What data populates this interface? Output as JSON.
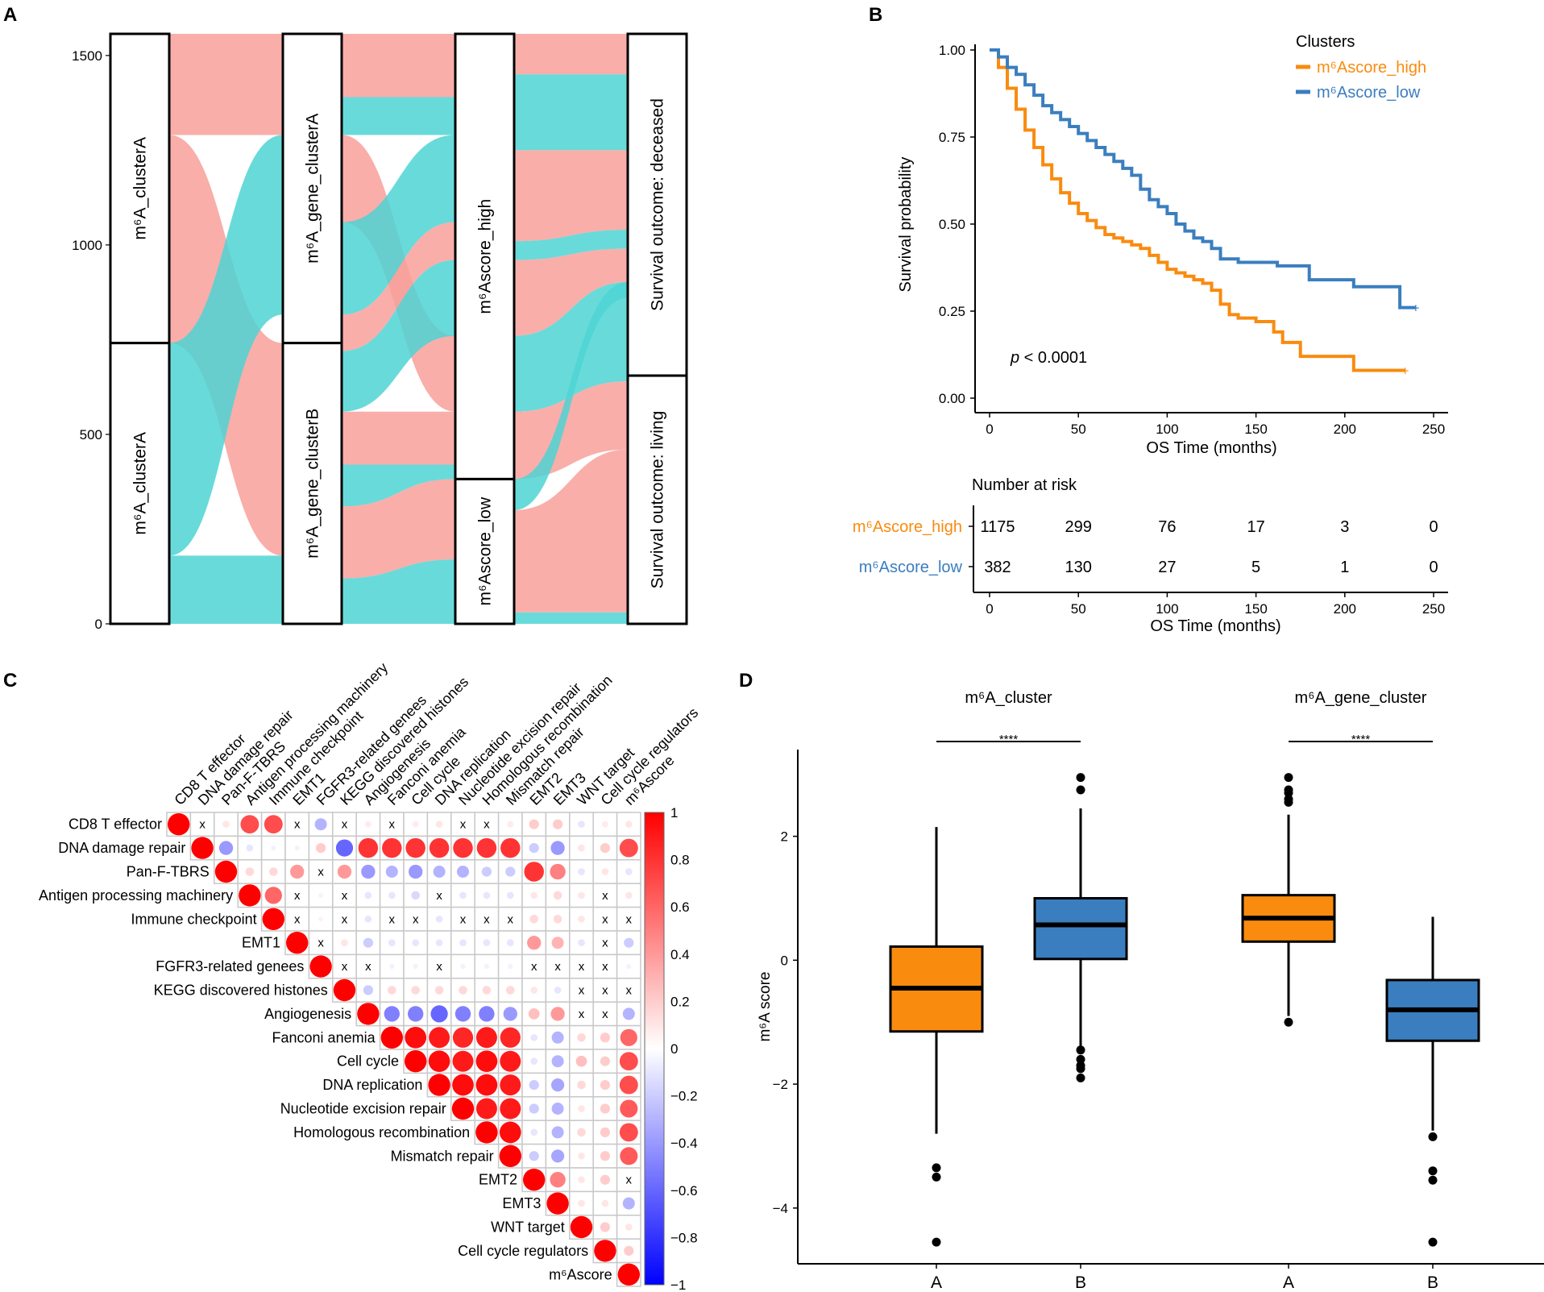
{
  "panels": {
    "A": "A",
    "B": "B",
    "C": "C",
    "D": "D"
  },
  "chart_data": [
    {
      "panel": "A",
      "type": "alluvial",
      "y_ticks": [
        "0",
        "500",
        "1000",
        "1500"
      ],
      "ylim": [
        0,
        1557
      ],
      "colors": {
        "pink": "#f8a09b",
        "teal": "#4fd3d3"
      },
      "axes": [
        {
          "strata": [
            {
              "label": "m⁶A_clusterA",
              "size": 816
            },
            {
              "label": "m⁶A_clusterA",
              "size": 741
            }
          ]
        },
        {
          "strata": [
            {
              "label": "m⁶A_gene_clusterA",
              "size": 816
            },
            {
              "label": "m⁶A_gene_clusterB",
              "size": 741
            }
          ]
        },
        {
          "strata": [
            {
              "label": "m⁶Ascore_high",
              "size": 1175
            },
            {
              "label": "m⁶Ascore_low",
              "size": 382
            }
          ]
        },
        {
          "strata": [
            {
              "label": "Survival outcome: deceased",
              "size": 902
            },
            {
              "label": "Survival outcome: living",
              "size": 655
            }
          ]
        }
      ]
    },
    {
      "panel": "B",
      "type": "line",
      "subtype": "kaplan-meier",
      "ylabel": "Survival probability",
      "xlabel": "OS Time (months)",
      "xlim": [
        0,
        250
      ],
      "ylim": [
        0,
        1
      ],
      "x_ticks": [
        "0",
        "50",
        "100",
        "150",
        "200",
        "250"
      ],
      "y_ticks": [
        "0.00",
        "0.25",
        "0.50",
        "0.75",
        "1.00"
      ],
      "legend_title": "Clusters",
      "pvalue_prefix": "p",
      "pvalue_text": " < 0.0001",
      "series": [
        {
          "name": "m⁶Ascore_high",
          "color": "#f98b0f",
          "points": [
            [
              0,
              1.0
            ],
            [
              5,
              0.95
            ],
            [
              10,
              0.89
            ],
            [
              15,
              0.83
            ],
            [
              20,
              0.77
            ],
            [
              25,
              0.72
            ],
            [
              30,
              0.67
            ],
            [
              35,
              0.63
            ],
            [
              40,
              0.59
            ],
            [
              45,
              0.56
            ],
            [
              50,
              0.53
            ],
            [
              55,
              0.51
            ],
            [
              60,
              0.49
            ],
            [
              65,
              0.47
            ],
            [
              70,
              0.46
            ],
            [
              75,
              0.45
            ],
            [
              80,
              0.44
            ],
            [
              85,
              0.43
            ],
            [
              90,
              0.41
            ],
            [
              95,
              0.39
            ],
            [
              100,
              0.37
            ],
            [
              105,
              0.36
            ],
            [
              110,
              0.35
            ],
            [
              115,
              0.34
            ],
            [
              120,
              0.33
            ],
            [
              125,
              0.31
            ],
            [
              130,
              0.27
            ],
            [
              135,
              0.24
            ],
            [
              140,
              0.23
            ],
            [
              150,
              0.22
            ],
            [
              160,
              0.19
            ],
            [
              165,
              0.16
            ],
            [
              175,
              0.12
            ],
            [
              205,
              0.08
            ],
            [
              234,
              0.08
            ]
          ]
        },
        {
          "name": "m⁶Ascore_low",
          "color": "#3a7ebf",
          "points": [
            [
              0,
              1.0
            ],
            [
              5,
              0.98
            ],
            [
              10,
              0.95
            ],
            [
              15,
              0.93
            ],
            [
              20,
              0.9
            ],
            [
              25,
              0.87
            ],
            [
              30,
              0.84
            ],
            [
              35,
              0.82
            ],
            [
              40,
              0.8
            ],
            [
              45,
              0.78
            ],
            [
              50,
              0.76
            ],
            [
              55,
              0.74
            ],
            [
              60,
              0.72
            ],
            [
              65,
              0.7
            ],
            [
              70,
              0.68
            ],
            [
              75,
              0.66
            ],
            [
              80,
              0.64
            ],
            [
              85,
              0.6
            ],
            [
              90,
              0.57
            ],
            [
              95,
              0.55
            ],
            [
              100,
              0.53
            ],
            [
              105,
              0.5
            ],
            [
              110,
              0.48
            ],
            [
              115,
              0.46
            ],
            [
              120,
              0.45
            ],
            [
              125,
              0.43
            ],
            [
              130,
              0.4
            ],
            [
              140,
              0.39
            ],
            [
              150,
              0.39
            ],
            [
              162,
              0.38
            ],
            [
              175,
              0.38
            ],
            [
              180,
              0.34
            ],
            [
              190,
              0.34
            ],
            [
              198,
              0.34
            ],
            [
              205,
              0.32
            ],
            [
              230,
              0.32
            ],
            [
              231,
              0.26
            ],
            [
              240,
              0.26
            ]
          ]
        }
      ],
      "risk_table": {
        "title": "Number at risk",
        "xlabel": "OS Time (months)",
        "x_ticks": [
          "0",
          "50",
          "100",
          "150",
          "200",
          "250"
        ],
        "rows": [
          {
            "name": "m⁶Ascore_high",
            "color": "#f98b0f",
            "values": [
              "1175",
              "299",
              "76",
              "17",
              "3",
              "0"
            ]
          },
          {
            "name": "m⁶Ascore_low",
            "color": "#3a7ebf",
            "values": [
              "382",
              "130",
              "27",
              "5",
              "1",
              "0"
            ]
          }
        ]
      }
    },
    {
      "panel": "C",
      "type": "heatmap",
      "subtype": "correlation-upper-triangle",
      "variables": [
        "CD8 T effector",
        "DNA damage repair",
        "Pan-F-TBRS",
        "Antigen processing machinery",
        "Immune checkpoint",
        "EMT1",
        "FGFR3-related genees",
        "KEGG discovered histones",
        "Angiogenesis",
        "Fanconi anemia",
        "Cell cycle",
        "DNA replication",
        "Nucleotide excision repair",
        "Homologous recombination",
        "Mismatch repair",
        "EMT2",
        "EMT3",
        "WNT target",
        "Cell cycle regulators",
        "m⁶Ascore"
      ],
      "colorbar_ticks": [
        "1",
        "0.8",
        "0.6",
        "0.4",
        "0.2",
        "0",
        "−0.2",
        "−0.4",
        "−0.6",
        "−0.8",
        "−1"
      ],
      "insignificant_marker": "x",
      "matrix": [
        [
          1,
          "x",
          0.1,
          0.7,
          0.7,
          "x",
          -0.3,
          "x",
          0.08,
          "x",
          0.08,
          0.1,
          "x",
          "x",
          0.08,
          0.2,
          0.2,
          -0.1,
          0.08,
          0.1
        ],
        [
          null,
          1,
          -0.4,
          -0.1,
          -0.05,
          -0.05,
          0.2,
          -0.6,
          0.8,
          0.8,
          0.8,
          0.8,
          0.8,
          0.8,
          0.8,
          -0.2,
          -0.4,
          0.1,
          0.2,
          0.7
        ],
        [
          null,
          null,
          1,
          0.15,
          0.15,
          0.4,
          "x",
          0.4,
          -0.4,
          -0.3,
          -0.4,
          -0.3,
          -0.3,
          -0.2,
          -0.2,
          0.8,
          0.5,
          -0.1,
          0.1,
          -0.1
        ],
        [
          null,
          null,
          null,
          1,
          0.6,
          "x",
          0.05,
          "x",
          -0.1,
          -0.1,
          -0.15,
          "x",
          -0.1,
          -0.1,
          -0.1,
          0.1,
          0.15,
          0.1,
          "x",
          0.1
        ],
        [
          null,
          null,
          null,
          null,
          1,
          "x",
          0.05,
          "x",
          -0.1,
          "x",
          "x",
          -0.1,
          "x",
          "x",
          "x",
          0.15,
          0.15,
          0.1,
          "x",
          "x"
        ],
        [
          null,
          null,
          null,
          null,
          null,
          1,
          "x",
          0.1,
          -0.2,
          -0.1,
          -0.1,
          -0.1,
          -0.1,
          -0.1,
          -0.1,
          0.4,
          0.3,
          -0.1,
          "x",
          -0.2
        ],
        [
          null,
          null,
          null,
          null,
          null,
          null,
          1,
          "x",
          "x",
          -0.05,
          -0.05,
          "x",
          -0.05,
          -0.05,
          -0.05,
          "x",
          "x",
          "x",
          "x",
          -0.05
        ],
        [
          null,
          null,
          null,
          null,
          null,
          null,
          null,
          1,
          -0.2,
          0.15,
          0.15,
          0.15,
          0.15,
          0.15,
          0.15,
          0.1,
          -0.1,
          "x",
          "x",
          "x"
        ],
        [
          null,
          null,
          null,
          null,
          null,
          null,
          null,
          null,
          1,
          -0.5,
          -0.5,
          -0.6,
          -0.5,
          -0.5,
          -0.4,
          0.25,
          0.4,
          "x",
          "x",
          -0.3
        ],
        [
          null,
          null,
          null,
          null,
          null,
          null,
          null,
          null,
          null,
          1,
          0.95,
          0.9,
          0.85,
          0.9,
          0.85,
          -0.1,
          -0.3,
          0.15,
          0.2,
          0.6
        ],
        [
          null,
          null,
          null,
          null,
          null,
          null,
          null,
          null,
          null,
          null,
          1,
          0.95,
          0.9,
          0.95,
          0.9,
          -0.1,
          -0.3,
          0.25,
          0.2,
          0.7
        ],
        [
          null,
          null,
          null,
          null,
          null,
          null,
          null,
          null,
          null,
          null,
          null,
          1,
          0.95,
          0.95,
          0.9,
          -0.2,
          -0.35,
          0.15,
          0.2,
          0.7
        ],
        [
          null,
          null,
          null,
          null,
          null,
          null,
          null,
          null,
          null,
          null,
          null,
          null,
          1,
          0.9,
          0.9,
          -0.2,
          -0.3,
          0.1,
          0.2,
          0.65
        ],
        [
          null,
          null,
          null,
          null,
          null,
          null,
          null,
          null,
          null,
          null,
          null,
          null,
          null,
          1,
          0.95,
          -0.1,
          -0.3,
          0.15,
          0.2,
          0.7
        ],
        [
          null,
          null,
          null,
          null,
          null,
          null,
          null,
          null,
          null,
          null,
          null,
          null,
          null,
          null,
          1,
          -0.2,
          -0.35,
          0.1,
          0.2,
          0.65
        ],
        [
          null,
          null,
          null,
          null,
          null,
          null,
          null,
          null,
          null,
          null,
          null,
          null,
          null,
          null,
          null,
          1,
          0.5,
          0.1,
          0.2,
          "x"
        ],
        [
          null,
          null,
          null,
          null,
          null,
          null,
          null,
          null,
          null,
          null,
          null,
          null,
          null,
          null,
          null,
          null,
          1,
          0.1,
          0.1,
          -0.3
        ],
        [
          null,
          null,
          null,
          null,
          null,
          null,
          null,
          null,
          null,
          null,
          null,
          null,
          null,
          null,
          null,
          null,
          null,
          1,
          0.2,
          0.1
        ],
        [
          null,
          null,
          null,
          null,
          null,
          null,
          null,
          null,
          null,
          null,
          null,
          null,
          null,
          null,
          null,
          null,
          null,
          null,
          1,
          0.2
        ],
        [
          null,
          null,
          null,
          null,
          null,
          null,
          null,
          null,
          null,
          null,
          null,
          null,
          null,
          null,
          null,
          null,
          null,
          null,
          null,
          1
        ]
      ]
    },
    {
      "panel": "D",
      "type": "box",
      "ylabel": "m⁶A score",
      "ylim": [
        -4.9,
        3.4
      ],
      "y_ticks": [
        {
          "v": 2,
          "t": "2"
        },
        {
          "v": 0,
          "t": "0"
        },
        {
          "v": -2,
          "t": "−2"
        },
        {
          "v": -4,
          "t": "−4"
        }
      ],
      "groups": [
        {
          "label": "m⁶A_cluster",
          "significance": "****",
          "boxes": [
            {
              "cat": "A",
              "color": "#f98b0f",
              "q1": -1.15,
              "median": -0.45,
              "q3": 0.22,
              "whisker_low": -2.8,
              "whisker_high": 2.15,
              "outliers": [
                -3.35,
                -3.5,
                -4.55
              ]
            },
            {
              "cat": "B",
              "color": "#3a7ebf",
              "q1": 0.02,
              "median": 0.57,
              "q3": 1.0,
              "whisker_low": -1.4,
              "whisker_high": 2.45,
              "outliers": [
                2.75,
                2.95,
                -1.45,
                -1.6,
                -1.7,
                -1.75,
                -1.9
              ]
            }
          ]
        },
        {
          "label": "m⁶A_gene_cluster",
          "significance": "****",
          "boxes": [
            {
              "cat": "A",
              "color": "#f98b0f",
              "q1": 0.3,
              "median": 0.68,
              "q3": 1.05,
              "whisker_low": -0.9,
              "whisker_high": 2.35,
              "outliers": [
                2.55,
                2.7,
                2.95,
                2.75,
                2.6,
                -1.0
              ]
            },
            {
              "cat": "B",
              "color": "#3a7ebf",
              "q1": -1.3,
              "median": -0.8,
              "q3": -0.32,
              "whisker_low": -2.75,
              "whisker_high": 0.7,
              "outliers": [
                -2.85,
                -3.4,
                -3.55,
                -4.55
              ]
            }
          ]
        }
      ]
    }
  ]
}
